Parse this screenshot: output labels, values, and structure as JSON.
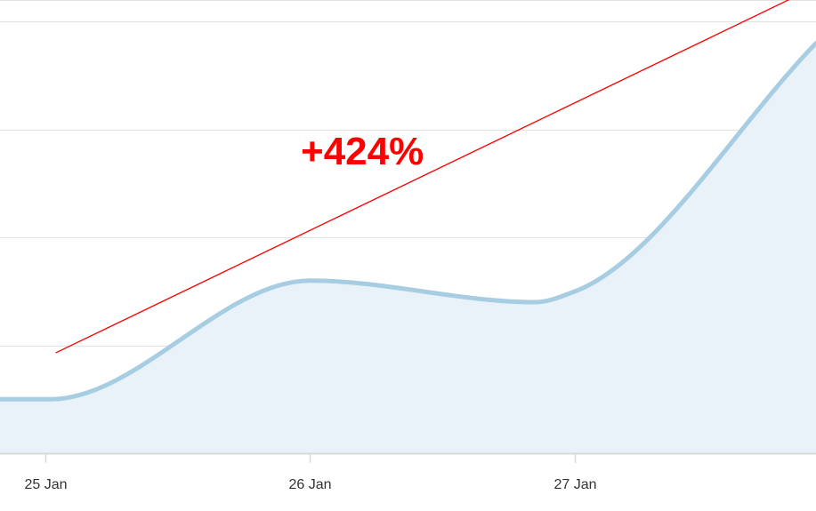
{
  "chart_data": {
    "type": "area",
    "x_tick_labels": [
      "25 Jan",
      "26 Jan",
      "27 Jan"
    ],
    "x_tick_values": [
      0,
      1,
      2
    ],
    "series": [
      {
        "x": [
          -0.17,
          0.02,
          1.0,
          1.85,
          2.0,
          2.91
        ],
        "values": [
          0.5,
          0.5,
          1.6,
          1.4,
          1.5,
          3.8
        ]
      }
    ],
    "xlim": [
      -0.17,
      2.91
    ],
    "ylim": [
      0,
      4.2
    ],
    "y_gridlines": [
      1,
      2,
      3,
      4
    ],
    "y_tick_labels_visible": false,
    "grid": true,
    "annotation": {
      "text": "+424%",
      "arrow_from": {
        "x": 0.04,
        "y": 0.93
      },
      "arrow_to": {
        "x": 2.89,
        "y": 4.3
      }
    },
    "colors": {
      "line": "#a7cde2",
      "fill": "#e9f2f9",
      "grid": "#e3e3e3",
      "baseline": "#d9d9d9",
      "annotation": "#ff0000"
    }
  }
}
